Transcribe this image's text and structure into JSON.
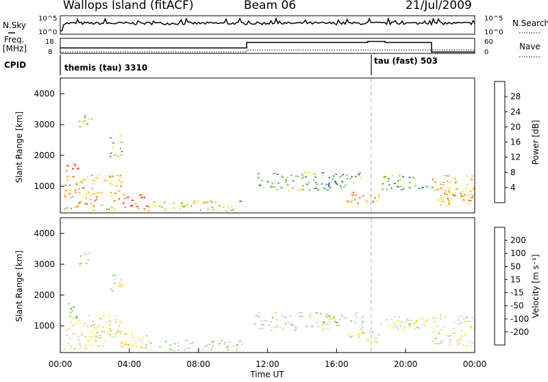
{
  "header": {
    "station": "Wallops Island (fitACF)",
    "beam": "Beam 06",
    "date": "21/Jul/2009"
  },
  "summary_panels": {
    "nsky_label": "N.Sky",
    "nsky_ticks": [
      "10^5",
      "10^0"
    ],
    "nsearch_label": "N.Search",
    "nsearch_ticks": [
      "10^5",
      "10^0"
    ],
    "freq_label_1": "Freq.",
    "freq_label_2": "[MHz]",
    "freq_ticks": [
      "18",
      "8"
    ],
    "nave_label": "Nave",
    "nave_ticks": [
      "60",
      "0"
    ],
    "cpid_label": "CPID",
    "cpid_segments": [
      {
        "name": "themis (tau) 3310",
        "start_hour": 0.0
      },
      {
        "name": "tau (fast) 503",
        "start_hour": 18.0
      }
    ]
  },
  "panels": {
    "power": {
      "ylabel": "Slant Range [km]",
      "yticks": [
        "4000",
        "3000",
        "2000",
        "1000"
      ],
      "colorbar_label": "Power [dB]",
      "colorbar_ticks": [
        "28",
        "24",
        "20",
        "16",
        "12",
        "8",
        "4"
      ],
      "colorbar_colors": [
        "#0000ff",
        "#1e4ec8",
        "#2e8b57",
        "#6abf5a",
        "#f0e000",
        "#ffa500",
        "#ff6000",
        "#ff0000"
      ]
    },
    "velocity": {
      "ylabel": "Slant Range [km]",
      "yticks": [
        "4000",
        "3000",
        "2000",
        "1000"
      ],
      "colorbar_label": "Velocity [m s⁻¹]",
      "colorbar_ticks": [
        "200",
        "100",
        "50",
        "15",
        "-15",
        "-50",
        "-100",
        "-200"
      ],
      "colorbar_colors": [
        "#0000c8",
        "#2060c0",
        "#2e8b57",
        "#80d040",
        "#c8c8c8",
        "#ffe000",
        "#ffa000",
        "#ff6000",
        "#ff0000"
      ]
    }
  },
  "xaxis": {
    "ticks": [
      "00:00",
      "04:00",
      "08:00",
      "12:00",
      "16:00",
      "20:00",
      "00:00"
    ],
    "label": "Time UT"
  },
  "chart_data": {
    "type": "heatmap",
    "title": "Wallops Island (fitACF)",
    "subtitle": "Beam 06 21/Jul/2009",
    "xlabel": "Time UT",
    "ylabel": "Slant Range [km]",
    "xlim_hours": [
      0,
      24
    ],
    "ylim_km": [
      180,
      4500
    ],
    "grid": false,
    "scatter_bands": [
      {
        "t0": 0.2,
        "t1": 3.5,
        "r0": 300,
        "r1": 1400,
        "power": 20,
        "velocity": -30
      },
      {
        "t0": 0.3,
        "t1": 1.0,
        "r0": 1300,
        "r1": 1800,
        "power": 26,
        "velocity": 60
      },
      {
        "t0": 1.0,
        "t1": 1.8,
        "r0": 2900,
        "r1": 3400,
        "power": 12,
        "velocity": 10
      },
      {
        "t0": 2.8,
        "t1": 3.6,
        "r0": 2000,
        "r1": 2700,
        "power": 14,
        "velocity": 5
      },
      {
        "t0": 3.5,
        "t1": 5.0,
        "r0": 300,
        "r1": 800,
        "power": 24,
        "velocity": -70
      },
      {
        "t0": 5.0,
        "t1": 10.5,
        "r0": 250,
        "r1": 600,
        "power": 16,
        "velocity": 20
      },
      {
        "t0": 11.2,
        "t1": 17.5,
        "r0": 900,
        "r1": 1500,
        "power": 12,
        "velocity": 5
      },
      {
        "t0": 16.5,
        "t1": 18.5,
        "r0": 500,
        "r1": 900,
        "power": 22,
        "velocity": -10
      },
      {
        "t0": 18.5,
        "t1": 21.5,
        "r0": 900,
        "r1": 1400,
        "power": 12,
        "velocity": 0
      },
      {
        "t0": 21.5,
        "t1": 24.0,
        "r0": 400,
        "r1": 1400,
        "power": 20,
        "velocity": -20
      }
    ],
    "power_range_db": [
      0,
      30
    ],
    "velocity_range_ms": [
      -200,
      200
    ],
    "cpid_changes_hours": [
      0.0,
      18.0
    ],
    "nave_range": [
      0,
      60
    ],
    "freq_range_mhz": [
      8,
      18
    ]
  }
}
